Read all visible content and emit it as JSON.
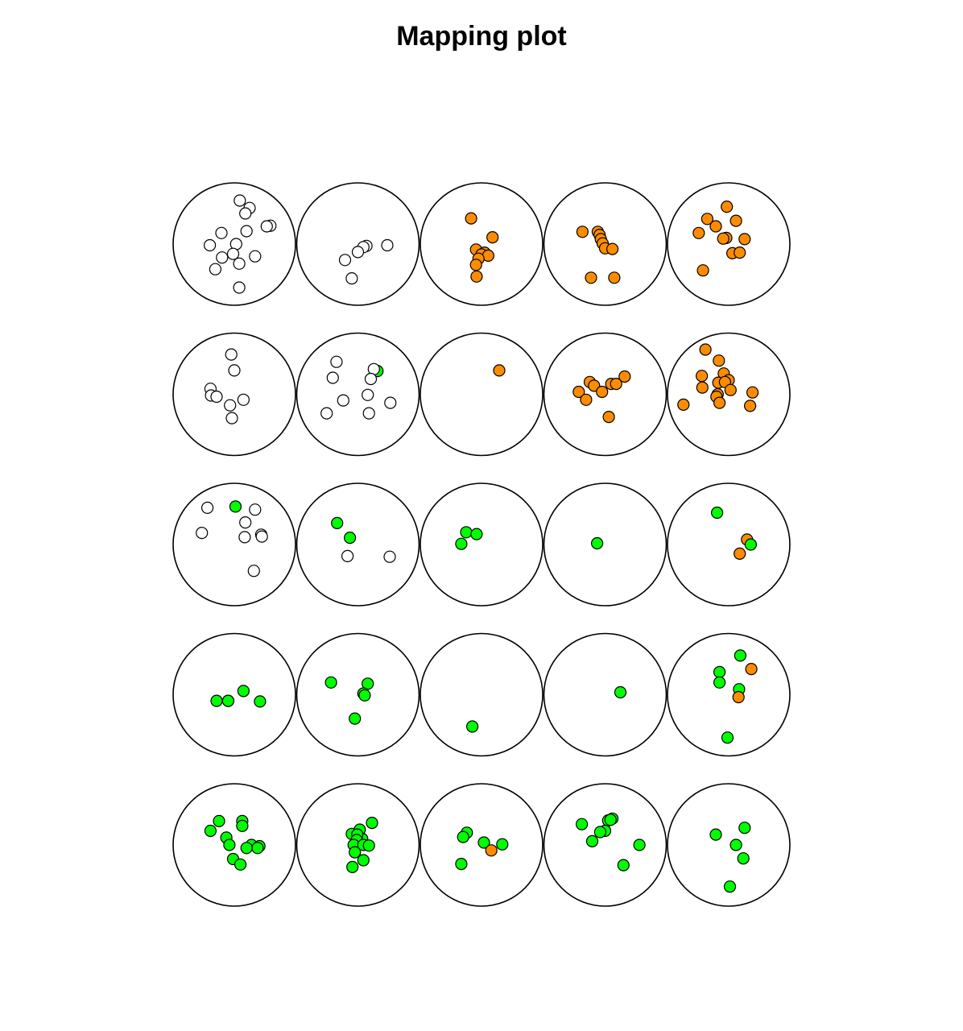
{
  "chart_data": {
    "type": "scatter",
    "title": "Mapping plot",
    "grid": {
      "rows": 5,
      "cols": 5,
      "row_order": "top-to-bottom",
      "col_order": "left-to-right"
    },
    "colors": {
      "none": "#ffffff",
      "orange": "#ff8c00",
      "green": "#00ff00",
      "outline": "#000000"
    },
    "cells": [
      {
        "row": 1,
        "col": 1,
        "points": [
          {
            "x": 0.09,
            "y": 0.71,
            "c": "none"
          },
          {
            "x": 0.25,
            "y": 0.59,
            "c": "none"
          },
          {
            "x": 0.18,
            "y": 0.5,
            "c": "none"
          },
          {
            "x": 0.2,
            "y": 0.21,
            "c": "none"
          },
          {
            "x": 0.59,
            "y": 0.3,
            "c": "none"
          },
          {
            "x": 0.53,
            "y": 0.29,
            "c": "none"
          },
          {
            "x": 0.03,
            "y": 0.0,
            "c": "none"
          },
          {
            "x": -0.21,
            "y": 0.18,
            "c": "none"
          },
          {
            "x": -0.4,
            "y": -0.02,
            "c": "none"
          },
          {
            "x": -0.2,
            "y": -0.22,
            "c": "none"
          },
          {
            "x": -0.31,
            "y": -0.41,
            "c": "none"
          },
          {
            "x": -0.02,
            "y": -0.16,
            "c": "none"
          },
          {
            "x": 0.08,
            "y": -0.32,
            "c": "none"
          },
          {
            "x": 0.34,
            "y": -0.2,
            "c": "none"
          },
          {
            "x": 0.08,
            "y": -0.71,
            "c": "none"
          }
        ]
      },
      {
        "row": 1,
        "col": 2,
        "points": [
          {
            "x": 0.48,
            "y": -0.02,
            "c": "none"
          },
          {
            "x": 0.14,
            "y": -0.03,
            "c": "none"
          },
          {
            "x": 0.09,
            "y": -0.05,
            "c": "none"
          },
          {
            "x": 0.0,
            "y": -0.13,
            "c": "none"
          },
          {
            "x": -0.21,
            "y": -0.26,
            "c": "none"
          },
          {
            "x": -0.1,
            "y": -0.56,
            "c": "none"
          }
        ]
      },
      {
        "row": 1,
        "col": 3,
        "points": [
          {
            "x": -0.17,
            "y": 0.42,
            "c": "orange"
          },
          {
            "x": 0.18,
            "y": 0.11,
            "c": "orange"
          },
          {
            "x": -0.09,
            "y": -0.09,
            "c": "orange"
          },
          {
            "x": 0.05,
            "y": -0.14,
            "c": "orange"
          },
          {
            "x": 0.0,
            "y": -0.17,
            "c": "orange"
          },
          {
            "x": 0.11,
            "y": -0.19,
            "c": "orange"
          },
          {
            "x": -0.05,
            "y": -0.24,
            "c": "orange"
          },
          {
            "x": -0.09,
            "y": -0.34,
            "c": "orange"
          },
          {
            "x": -0.08,
            "y": -0.53,
            "c": "orange"
          }
        ]
      },
      {
        "row": 1,
        "col": 4,
        "points": [
          {
            "x": -0.37,
            "y": 0.2,
            "c": "orange"
          },
          {
            "x": -0.12,
            "y": 0.2,
            "c": "orange"
          },
          {
            "x": -0.09,
            "y": 0.15,
            "c": "orange"
          },
          {
            "x": -0.07,
            "y": 0.08,
            "c": "orange"
          },
          {
            "x": -0.04,
            "y": 0.01,
            "c": "orange"
          },
          {
            "x": 0.0,
            "y": -0.07,
            "c": "orange"
          },
          {
            "x": 0.12,
            "y": -0.08,
            "c": "orange"
          },
          {
            "x": -0.23,
            "y": -0.55,
            "c": "orange"
          },
          {
            "x": 0.15,
            "y": -0.55,
            "c": "orange"
          }
        ]
      },
      {
        "row": 1,
        "col": 5,
        "points": [
          {
            "x": -0.03,
            "y": 0.61,
            "c": "orange"
          },
          {
            "x": -0.35,
            "y": 0.41,
            "c": "orange"
          },
          {
            "x": 0.12,
            "y": 0.38,
            "c": "orange"
          },
          {
            "x": -0.21,
            "y": 0.29,
            "c": "orange"
          },
          {
            "x": -0.49,
            "y": 0.18,
            "c": "orange"
          },
          {
            "x": -0.04,
            "y": 0.1,
            "c": "orange"
          },
          {
            "x": -0.09,
            "y": 0.09,
            "c": "orange"
          },
          {
            "x": 0.26,
            "y": 0.08,
            "c": "orange"
          },
          {
            "x": 0.06,
            "y": -0.15,
            "c": "orange"
          },
          {
            "x": 0.18,
            "y": -0.14,
            "c": "orange"
          },
          {
            "x": -0.42,
            "y": -0.43,
            "c": "orange"
          }
        ]
      },
      {
        "row": 2,
        "col": 1,
        "points": [
          {
            "x": -0.05,
            "y": 0.65,
            "c": "none"
          },
          {
            "x": 0.0,
            "y": 0.39,
            "c": "none"
          },
          {
            "x": -0.39,
            "y": 0.09,
            "c": "none"
          },
          {
            "x": -0.38,
            "y": -0.02,
            "c": "none"
          },
          {
            "x": -0.29,
            "y": -0.04,
            "c": "none"
          },
          {
            "x": 0.15,
            "y": -0.09,
            "c": "none"
          },
          {
            "x": -0.07,
            "y": -0.18,
            "c": "none"
          },
          {
            "x": -0.04,
            "y": -0.39,
            "c": "none"
          }
        ]
      },
      {
        "row": 2,
        "col": 2,
        "points": [
          {
            "x": -0.35,
            "y": 0.53,
            "c": "none"
          },
          {
            "x": 0.32,
            "y": 0.38,
            "c": "green"
          },
          {
            "x": 0.26,
            "y": 0.41,
            "c": "none"
          },
          {
            "x": -0.41,
            "y": 0.27,
            "c": "none"
          },
          {
            "x": 0.21,
            "y": 0.25,
            "c": "none"
          },
          {
            "x": 0.16,
            "y": -0.01,
            "c": "none"
          },
          {
            "x": -0.24,
            "y": -0.1,
            "c": "none"
          },
          {
            "x": 0.53,
            "y": -0.14,
            "c": "none"
          },
          {
            "x": -0.51,
            "y": -0.31,
            "c": "none"
          },
          {
            "x": 0.18,
            "y": -0.31,
            "c": "none"
          }
        ]
      },
      {
        "row": 2,
        "col": 3,
        "points": [
          {
            "x": 0.29,
            "y": 0.39,
            "c": "orange"
          }
        ]
      },
      {
        "row": 2,
        "col": 4,
        "points": [
          {
            "x": 0.32,
            "y": 0.29,
            "c": "orange"
          },
          {
            "x": -0.25,
            "y": 0.2,
            "c": "orange"
          },
          {
            "x": 0.1,
            "y": 0.17,
            "c": "orange"
          },
          {
            "x": 0.18,
            "y": 0.17,
            "c": "orange"
          },
          {
            "x": -0.18,
            "y": 0.14,
            "c": "orange"
          },
          {
            "x": -0.43,
            "y": 0.04,
            "c": "orange"
          },
          {
            "x": -0.05,
            "y": 0.04,
            "c": "orange"
          },
          {
            "x": -0.31,
            "y": -0.09,
            "c": "orange"
          },
          {
            "x": 0.06,
            "y": -0.37,
            "c": "orange"
          }
        ]
      },
      {
        "row": 2,
        "col": 5,
        "points": [
          {
            "x": -0.38,
            "y": 0.73,
            "c": "orange"
          },
          {
            "x": -0.16,
            "y": 0.55,
            "c": "orange"
          },
          {
            "x": -0.08,
            "y": 0.34,
            "c": "orange"
          },
          {
            "x": -0.44,
            "y": 0.3,
            "c": "orange"
          },
          {
            "x": 0.0,
            "y": 0.23,
            "c": "orange"
          },
          {
            "x": -0.17,
            "y": 0.19,
            "c": "orange"
          },
          {
            "x": -0.06,
            "y": 0.2,
            "c": "orange"
          },
          {
            "x": -0.43,
            "y": 0.11,
            "c": "orange"
          },
          {
            "x": -0.18,
            "y": 0.0,
            "c": "orange"
          },
          {
            "x": 0.03,
            "y": 0.07,
            "c": "orange"
          },
          {
            "x": 0.39,
            "y": 0.03,
            "c": "orange"
          },
          {
            "x": -0.2,
            "y": -0.04,
            "c": "orange"
          },
          {
            "x": -0.15,
            "y": -0.14,
            "c": "orange"
          },
          {
            "x": -0.74,
            "y": -0.17,
            "c": "orange"
          },
          {
            "x": 0.35,
            "y": -0.19,
            "c": "orange"
          }
        ]
      },
      {
        "row": 3,
        "col": 1,
        "points": [
          {
            "x": -0.44,
            "y": 0.6,
            "c": "none"
          },
          {
            "x": 0.02,
            "y": 0.62,
            "c": "green"
          },
          {
            "x": 0.34,
            "y": 0.57,
            "c": "none"
          },
          {
            "x": 0.18,
            "y": 0.36,
            "c": "none"
          },
          {
            "x": -0.53,
            "y": 0.19,
            "c": "none"
          },
          {
            "x": 0.17,
            "y": 0.12,
            "c": "none"
          },
          {
            "x": 0.44,
            "y": 0.16,
            "c": "none"
          },
          {
            "x": 0.45,
            "y": 0.13,
            "c": "none"
          },
          {
            "x": 0.32,
            "y": -0.43,
            "c": "none"
          }
        ]
      },
      {
        "row": 3,
        "col": 2,
        "points": [
          {
            "x": -0.34,
            "y": 0.35,
            "c": "green"
          },
          {
            "x": -0.13,
            "y": 0.11,
            "c": "green"
          },
          {
            "x": -0.17,
            "y": -0.19,
            "c": "none"
          },
          {
            "x": 0.52,
            "y": -0.2,
            "c": "none"
          }
        ]
      },
      {
        "row": 3,
        "col": 3,
        "points": [
          {
            "x": -0.25,
            "y": 0.2,
            "c": "green"
          },
          {
            "x": -0.08,
            "y": 0.17,
            "c": "green"
          },
          {
            "x": -0.33,
            "y": 0.01,
            "c": "green"
          }
        ]
      },
      {
        "row": 3,
        "col": 4,
        "points": [
          {
            "x": -0.13,
            "y": 0.02,
            "c": "green"
          }
        ]
      },
      {
        "row": 3,
        "col": 5,
        "points": [
          {
            "x": -0.19,
            "y": 0.52,
            "c": "green"
          },
          {
            "x": 0.3,
            "y": 0.08,
            "c": "orange"
          },
          {
            "x": 0.36,
            "y": 0.0,
            "c": "green"
          },
          {
            "x": 0.18,
            "y": -0.15,
            "c": "orange"
          }
        ]
      },
      {
        "row": 4,
        "col": 1,
        "points": [
          {
            "x": 0.15,
            "y": 0.06,
            "c": "green"
          },
          {
            "x": -0.29,
            "y": -0.1,
            "c": "green"
          },
          {
            "x": -0.1,
            "y": -0.1,
            "c": "green"
          },
          {
            "x": -0.1,
            "y": -0.1,
            "c": "green"
          },
          {
            "x": 0.42,
            "y": -0.11,
            "c": "green"
          }
        ]
      },
      {
        "row": 4,
        "col": 2,
        "points": [
          {
            "x": -0.44,
            "y": 0.2,
            "c": "green"
          },
          {
            "x": 0.16,
            "y": 0.18,
            "c": "green"
          },
          {
            "x": 0.09,
            "y": 0.02,
            "c": "green"
          },
          {
            "x": 0.11,
            "y": -0.01,
            "c": "green"
          },
          {
            "x": -0.05,
            "y": -0.39,
            "c": "green"
          }
        ]
      },
      {
        "row": 4,
        "col": 3,
        "points": [
          {
            "x": -0.15,
            "y": -0.52,
            "c": "green"
          }
        ]
      },
      {
        "row": 4,
        "col": 4,
        "points": [
          {
            "x": 0.25,
            "y": 0.04,
            "c": "green"
          }
        ]
      },
      {
        "row": 4,
        "col": 5,
        "points": [
          {
            "x": 0.19,
            "y": 0.64,
            "c": "green"
          },
          {
            "x": 0.37,
            "y": 0.42,
            "c": "orange"
          },
          {
            "x": -0.15,
            "y": 0.37,
            "c": "green"
          },
          {
            "x": -0.15,
            "y": 0.2,
            "c": "green"
          },
          {
            "x": 0.17,
            "y": 0.09,
            "c": "green"
          },
          {
            "x": 0.16,
            "y": -0.04,
            "c": "orange"
          },
          {
            "x": -0.02,
            "y": -0.7,
            "c": "green"
          }
        ]
      },
      {
        "row": 5,
        "col": 1,
        "points": [
          {
            "x": -0.25,
            "y": 0.39,
            "c": "green"
          },
          {
            "x": 0.13,
            "y": 0.39,
            "c": "green"
          },
          {
            "x": 0.13,
            "y": 0.31,
            "c": "green"
          },
          {
            "x": -0.39,
            "y": 0.23,
            "c": "green"
          },
          {
            "x": -0.13,
            "y": 0.12,
            "c": "green"
          },
          {
            "x": -0.08,
            "y": 0.0,
            "c": "green"
          },
          {
            "x": 0.28,
            "y": 0.0,
            "c": "green"
          },
          {
            "x": 0.41,
            "y": -0.02,
            "c": "green"
          },
          {
            "x": 0.38,
            "y": -0.05,
            "c": "green"
          },
          {
            "x": 0.2,
            "y": -0.05,
            "c": "green"
          },
          {
            "x": -0.02,
            "y": -0.23,
            "c": "green"
          },
          {
            "x": 0.1,
            "y": -0.32,
            "c": "green"
          }
        ]
      },
      {
        "row": 5,
        "col": 2,
        "points": [
          {
            "x": 0.23,
            "y": 0.36,
            "c": "green"
          },
          {
            "x": 0.03,
            "y": 0.25,
            "c": "green"
          },
          {
            "x": -0.1,
            "y": 0.18,
            "c": "green"
          },
          {
            "x": 0.02,
            "y": 0.12,
            "c": "green"
          },
          {
            "x": 0.07,
            "y": 0.1,
            "c": "green"
          },
          {
            "x": -0.01,
            "y": 0.17,
            "c": "green"
          },
          {
            "x": -0.02,
            "y": 0.08,
            "c": "green"
          },
          {
            "x": -0.07,
            "y": 0.0,
            "c": "green"
          },
          {
            "x": 0.09,
            "y": 0.0,
            "c": "green"
          },
          {
            "x": 0.18,
            "y": -0.01,
            "c": "green"
          },
          {
            "x": -0.05,
            "y": -0.12,
            "c": "green"
          },
          {
            "x": 0.09,
            "y": -0.25,
            "c": "green"
          },
          {
            "x": -0.09,
            "y": -0.36,
            "c": "green"
          }
        ]
      },
      {
        "row": 5,
        "col": 3,
        "points": [
          {
            "x": -0.24,
            "y": 0.2,
            "c": "green"
          },
          {
            "x": -0.3,
            "y": 0.13,
            "c": "green"
          },
          {
            "x": 0.04,
            "y": 0.04,
            "c": "green"
          },
          {
            "x": 0.34,
            "y": 0.01,
            "c": "green"
          },
          {
            "x": 0.16,
            "y": -0.09,
            "c": "orange"
          },
          {
            "x": -0.33,
            "y": -0.31,
            "c": "green"
          }
        ]
      },
      {
        "row": 5,
        "col": 4,
        "points": [
          {
            "x": 0.05,
            "y": 0.4,
            "c": "green"
          },
          {
            "x": 0.12,
            "y": 0.43,
            "c": "green"
          },
          {
            "x": 0.09,
            "y": 0.41,
            "c": "green"
          },
          {
            "x": -0.38,
            "y": 0.34,
            "c": "green"
          },
          {
            "x": 0.0,
            "y": 0.23,
            "c": "green"
          },
          {
            "x": -0.08,
            "y": 0.21,
            "c": "green"
          },
          {
            "x": -0.21,
            "y": 0.06,
            "c": "green"
          },
          {
            "x": 0.56,
            "y": 0.0,
            "c": "green"
          },
          {
            "x": 0.3,
            "y": -0.33,
            "c": "green"
          }
        ]
      },
      {
        "row": 5,
        "col": 5,
        "points": [
          {
            "x": 0.26,
            "y": 0.28,
            "c": "green"
          },
          {
            "x": -0.21,
            "y": 0.17,
            "c": "green"
          },
          {
            "x": 0.12,
            "y": 0.0,
            "c": "green"
          },
          {
            "x": 0.24,
            "y": -0.22,
            "c": "green"
          },
          {
            "x": 0.02,
            "y": -0.68,
            "c": "green"
          }
        ]
      }
    ]
  }
}
